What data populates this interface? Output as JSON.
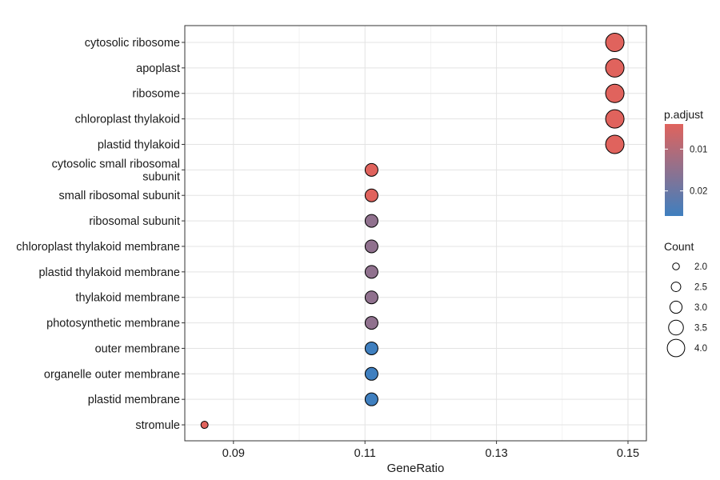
{
  "chart_data": {
    "type": "scatter",
    "title": "",
    "xlabel": "GeneRatio",
    "ylabel": "",
    "xlim": [
      0.0826,
      0.1528
    ],
    "x_ticks": [
      0.09,
      0.11,
      0.13,
      0.15
    ],
    "x_tick_labels": [
      "0.09",
      "0.11",
      "0.13",
      "0.15"
    ],
    "grid": true,
    "legend_position": "right",
    "points": [
      {
        "term": "cytosolic ribosome",
        "gene_ratio": 0.148,
        "count": 4,
        "p_adjust": 0.004
      },
      {
        "term": "apoplast",
        "gene_ratio": 0.148,
        "count": 4,
        "p_adjust": 0.004
      },
      {
        "term": "ribosome",
        "gene_ratio": 0.148,
        "count": 4,
        "p_adjust": 0.004
      },
      {
        "term": "chloroplast thylakoid",
        "gene_ratio": 0.148,
        "count": 4,
        "p_adjust": 0.004
      },
      {
        "term": "plastid thylakoid",
        "gene_ratio": 0.148,
        "count": 4,
        "p_adjust": 0.004
      },
      {
        "term": "cytosolic small ribosomal\nsubunit",
        "gene_ratio": 0.111,
        "count": 3,
        "p_adjust": 0.004
      },
      {
        "term": "small ribosomal subunit",
        "gene_ratio": 0.111,
        "count": 3,
        "p_adjust": 0.004
      },
      {
        "term": "ribosomal subunit",
        "gene_ratio": 0.111,
        "count": 3,
        "p_adjust": 0.015
      },
      {
        "term": "chloroplast thylakoid membrane",
        "gene_ratio": 0.111,
        "count": 3,
        "p_adjust": 0.015
      },
      {
        "term": "plastid thylakoid membrane",
        "gene_ratio": 0.111,
        "count": 3,
        "p_adjust": 0.015
      },
      {
        "term": "thylakoid membrane",
        "gene_ratio": 0.111,
        "count": 3,
        "p_adjust": 0.015
      },
      {
        "term": "photosynthetic membrane",
        "gene_ratio": 0.111,
        "count": 3,
        "p_adjust": 0.015
      },
      {
        "term": "outer membrane",
        "gene_ratio": 0.111,
        "count": 3,
        "p_adjust": 0.026
      },
      {
        "term": "organelle outer membrane",
        "gene_ratio": 0.111,
        "count": 3,
        "p_adjust": 0.026
      },
      {
        "term": "plastid membrane",
        "gene_ratio": 0.111,
        "count": 3,
        "p_adjust": 0.026
      },
      {
        "term": "stromule",
        "gene_ratio": 0.0856,
        "count": 2,
        "p_adjust": 0.004
      }
    ],
    "color_legend": {
      "title": "p.adjust",
      "range": [
        0.004,
        0.026
      ],
      "ticks": [
        0.01,
        0.02
      ],
      "tick_labels": [
        "0.01",
        "0.02"
      ],
      "low_color": "#e0635d",
      "high_color": "#3f7fbf"
    },
    "size_legend": {
      "title": "Count",
      "values": [
        2.0,
        2.5,
        3.0,
        3.5,
        4.0
      ],
      "labels": [
        "2.0",
        "2.5",
        "3.0",
        "3.5",
        "4.0"
      ]
    }
  }
}
